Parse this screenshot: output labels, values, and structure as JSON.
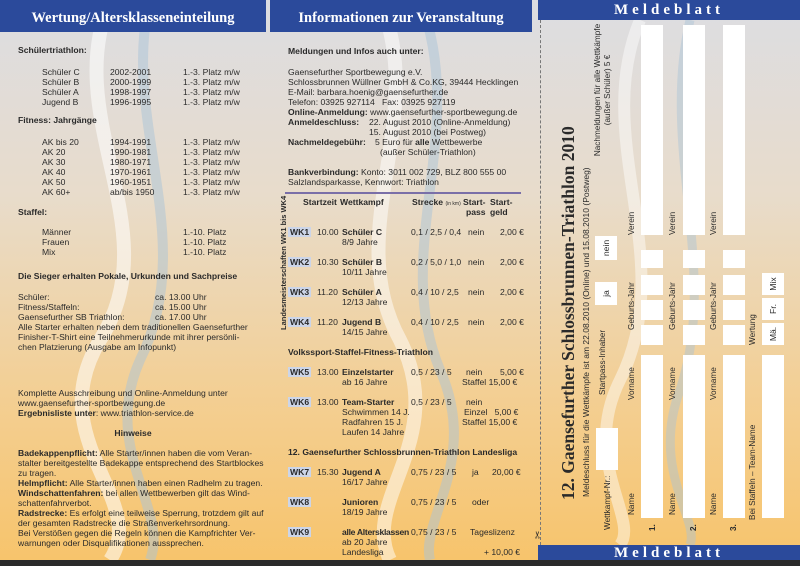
{
  "left": {
    "title": "Wertung/Altersklasseneinteilung",
    "schueler_heading": "Schülertriathlon:",
    "schueler": [
      [
        "Schüler C",
        "2002-2001",
        "1.-3. Platz m/w"
      ],
      [
        "Schüler B",
        "2000-1999",
        "1.-3. Platz m/w"
      ],
      [
        "Schüler A",
        "1998-1997",
        "1.-3. Platz m/w"
      ],
      [
        "Jugend B",
        "1996-1995",
        "1.-3. Platz m/w"
      ]
    ],
    "fitness_heading": "Fitness: Jahrgänge",
    "fitness": [
      [
        "AK bis 20",
        "1994-1991",
        "1.-3. Platz m/w"
      ],
      [
        "AK 20",
        "1990-1981",
        "1.-3. Platz m/w"
      ],
      [
        "AK 30",
        "1980-1971",
        "1.-3. Platz m/w"
      ],
      [
        "AK 40",
        "1970-1961",
        "1.-3. Platz m/w"
      ],
      [
        "AK 50",
        "1960-1951",
        "1.-3. Platz m/w"
      ],
      [
        "AK 60+",
        "ab/bis 1950",
        "1.-3. Platz m/w"
      ]
    ],
    "staffel_heading": "Staffel:",
    "staffel": [
      [
        "Männer",
        "1.-10. Platz"
      ],
      [
        "Frauen",
        "1.-10. Platz"
      ],
      [
        "Mix",
        "1.-10. Platz"
      ]
    ],
    "sieger_heading": "Die Sieger erhalten Pokale, Urkunden und Sachpreise",
    "ehrung": [
      [
        "Schüler:",
        "ca. 13.00 Uhr"
      ],
      [
        "Fitness/Staffeln:",
        "ca. 15.00 Uhr"
      ],
      [
        "Gaensefurther SB Triathlon:",
        "ca. 17.00 Uhr"
      ]
    ],
    "starter_text": [
      "Alle Starter erhalten neben dem traditionellen Gaensefurther",
      "Finisher-T-Shirt eine Teilnehmerurkunde mit ihrer persönli-",
      "chen Platzierung (Ausgabe am Infopunkt)"
    ],
    "ausschreibung": "Komplette Ausschreibung und Online-Anmeldung unter",
    "ausschreibung_url": "www.gaensefurther-sportbewegung.de",
    "ergebnis_label": "Ergebnisliste unter",
    "ergebnis_url": ": www.triathlon-service.de",
    "hinweise_heading": "Hinweise",
    "hinweise": [
      {
        "b": "Badekappenpflicht:",
        "t": " Alle Starter/innen haben die vom Veran-"
      },
      {
        "b": "",
        "t": "stalter bereitgestellte Badekappe entsprechend des Startblockes"
      },
      {
        "b": "",
        "t": "zu tragen."
      },
      {
        "b": "Helmpflicht:",
        "t": " Alle Starter/innen haben einen Radhelm zu tragen."
      },
      {
        "b": "Windschattenfahren:",
        "t": " bei allen Wettbewerben gilt das Wind-"
      },
      {
        "b": "",
        "t": "schattenfahrverbot."
      },
      {
        "b": "Radstrecke:",
        "t": " Es erfolgt eine teilweise Sperrung, trotzdem gilt auf"
      },
      {
        "b": "",
        "t": "der gesamten Radstrecke die Straßenverkehrsordnung."
      },
      {
        "b": "",
        "t": "Bei Verstößen gegen die Regeln können die Kampfrichter Ver-"
      },
      {
        "b": "",
        "t": "warnungen oder Disqualifikationen aussprechen."
      }
    ]
  },
  "middle": {
    "title": "Informationen zur Veranstaltung",
    "meldungen_heading": "Meldungen und Infos auch unter:",
    "org1": "Gaensefurther Sportbewegung e.V.",
    "org2": "Schlossbrunnen Wüllner GmbH & Co.KG, 39444 Hecklingen",
    "email": "E-Mail: barbara.hoenig@gaensefurther.de",
    "telefon": "Telefon: 03925 927114",
    "fax": "Fax: 03925 927119",
    "online_label": "Online-Anmeldung:",
    "online_url": "www.gaensefurther-sportbewegung.de",
    "schluss_label": "Anmeldeschluss:",
    "schluss1": "22. August 2010 (Online-Anmeldung)",
    "schluss2": "15. August 2010 (bei Postweg)",
    "nach_label": "Nachmeldegebühr:",
    "nach1a": "5 Euro für ",
    "nach1b": "alle",
    "nach1c": " Wettbewerbe",
    "nach2": "(außer Schüler-Triathlon)",
    "bank_label": "Bankverbindung:",
    "bank": " Konto: 3011 002 729, BLZ 800 555 00",
    "bank2": "Salzlandsparkasse, Kennwort: Triathlon",
    "vertical_label": "Landesmeisterschaften WK1 bis WK4",
    "headers": {
      "startzeit": "Startzeit",
      "wettkampf": "Wettkampf",
      "strecke": "Strecke",
      "strecke_unit": "(in km)",
      "startpass1": "Start-",
      "startpass2": "pass",
      "startgeld1": "Start-",
      "startgeld2": "geld"
    },
    "wk": [
      {
        "id": "WK1",
        "time": "10.00",
        "name": "Schüler C",
        "sub": [
          "8/9 Jahre"
        ],
        "strecke": "0,1 / 2,5 / 0,4",
        "pass": "nein",
        "geld": "2,00 €"
      },
      {
        "id": "WK2",
        "time": "10.30",
        "name": "Schüler B",
        "sub": [
          "10/11 Jahre"
        ],
        "strecke": "0,2 / 5,0 / 1,0",
        "pass": "nein",
        "geld": "2,00 €"
      },
      {
        "id": "WK3",
        "time": "11.20",
        "name": "Schüler A",
        "sub": [
          "12/13 Jahre"
        ],
        "strecke": "0,4 / 10 / 2,5",
        "pass": "nein",
        "geld": "2,00 €"
      },
      {
        "id": "WK4",
        "time": "11.20",
        "name": "Jugend B",
        "sub": [
          "14/15 Jahre"
        ],
        "strecke": "0,4 / 10 / 2,5",
        "pass": "nein",
        "geld": "2,00 €"
      },
      {
        "id": "WK5",
        "time": "13.00",
        "name": "Einzelstarter",
        "sub": [
          "ab 16 Jahre"
        ],
        "strecke": "0,5 / 23 / 5",
        "pass": "nein",
        "geld": "5,00 €",
        "extra": "Staffel 15,00 €"
      },
      {
        "id": "WK6",
        "time": "13.00",
        "name": "Team-Starter",
        "sub": [
          "Schwimmen 14 J.",
          "Radfahren 15 J.",
          "Laufen 14 Jahre"
        ],
        "strecke": "0,5 / 23 / 5",
        "pass": "nein",
        "extra1": "Einzel   5,00 €",
        "extra2": "Staffel 15,00 €"
      },
      {
        "id": "WK7",
        "time": "15.30",
        "name": "Jugend A",
        "sub": [
          "16/17 Jahre"
        ],
        "strecke": "0,75 / 23 / 5",
        "pass": "ja",
        "geld": "20,00 €"
      },
      {
        "id": "WK8",
        "time": "",
        "name": "Junioren",
        "sub": [
          "18/19 Jahre"
        ],
        "strecke": "0,75 / 23 / 5",
        "pass": "oder"
      },
      {
        "id": "WK9",
        "time": "",
        "name": "alle Altersklassen",
        "sub": [
          "ab 20 Jahre",
          "Landesliga"
        ],
        "strecke": "0,75 / 23 / 5",
        "pass": "Tageslizenz",
        "geld": "+ 10,00 €"
      }
    ],
    "volkssport_heading": "Volkssport-Staffel-Fitness-Triathlon",
    "landesliga_heading": "12. Gaensefurther Schlossbrunnen-Triathlon Landesliga"
  },
  "form": {
    "header": "Meldeblatt",
    "footer": "Meldeblatt",
    "title": "12. Gaensefurther Schlossbrunnen-Triathlon 2010",
    "subtitle": "Meldeschluss für die Wettkämpfe ist am 22.08.2010 (Online) und 15.08.2010 (Postweg)",
    "wettkampf_nr": "Wettkampf-Nr.:",
    "startpass": "Startpass-Inhaber",
    "ja": "ja",
    "nein": "nein",
    "nachmeldung1": "Nachmeldungen für alle Wettkämpfe",
    "nachmeldung2": "(außer Schüler) 5 €",
    "rows": [
      {
        "num": "1."
      },
      {
        "num": "2."
      },
      {
        "num": "3."
      }
    ],
    "name": "Name",
    "vorname": "Vorname",
    "geburtsjahr": "Geburts-Jahr",
    "verein": "Verein",
    "team": "Bei Staffeln – Team-Name",
    "wertung": "Wertung",
    "wertung_opts": [
      "Mä.",
      "Fr.",
      "Mix"
    ],
    "scissors_icon": "✂"
  },
  "colors": {
    "header_blue": "#2b4a9b",
    "wk_badge": "#ccd5e8"
  }
}
